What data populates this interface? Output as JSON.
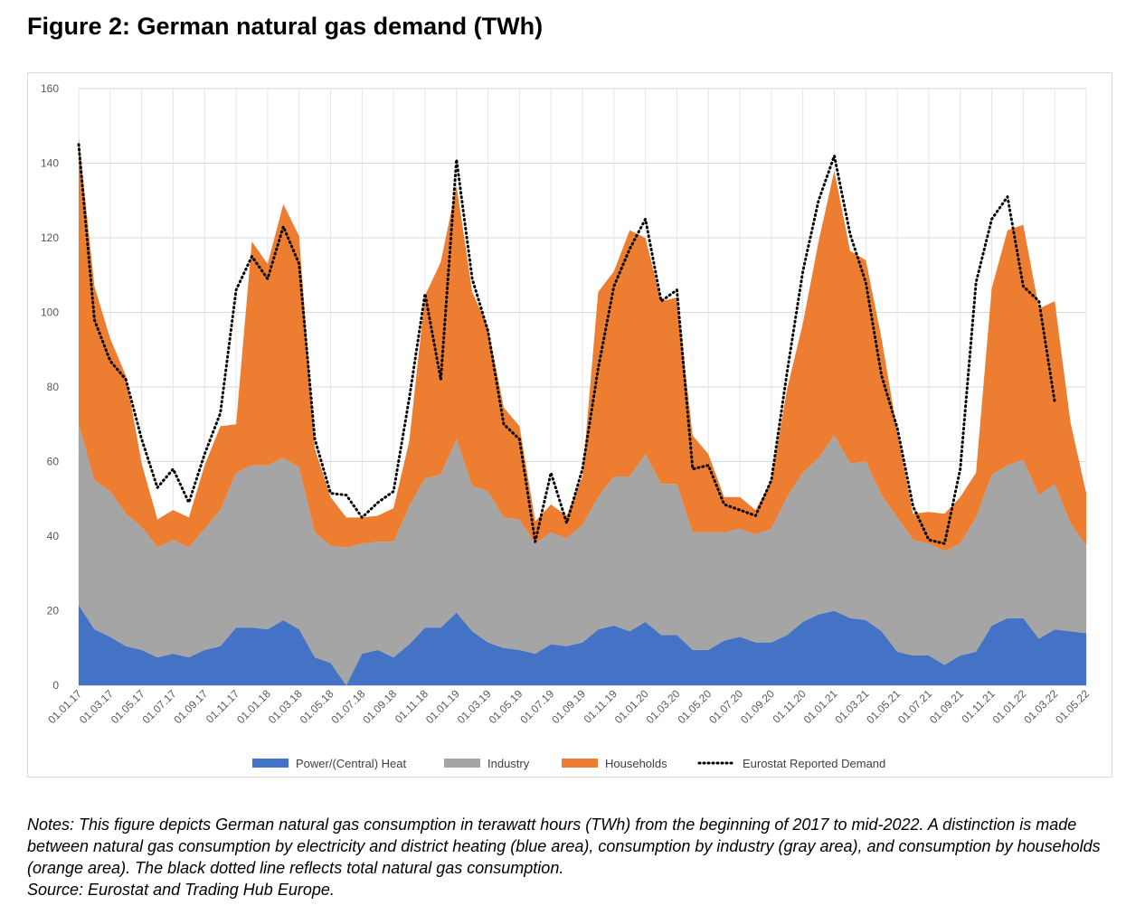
{
  "figure_title": "Figure 2: German natural gas demand (TWh)",
  "notes": "Notes: This figure depicts German natural gas consumption in terawatt hours (TWh) from the beginning of 2017 to mid-2022. A distinction is made between natural gas consumption by electricity and district heating (blue area), consumption by industry (gray area), and consumption by households (orange area). The black dotted line reflects total natural gas consumption.",
  "source": "Source: Eurostat and Trading Hub Europe.",
  "chart_data": {
    "type": "area",
    "stacked": true,
    "title": "",
    "xlabel": "",
    "ylabel": "",
    "ylim": [
      0,
      160
    ],
    "yticks": [
      0,
      20,
      40,
      60,
      80,
      100,
      120,
      140,
      160
    ],
    "grid": true,
    "legend_position": "bottom",
    "x_tick_labels": [
      "01.01.17",
      "01.03.17",
      "01.05.17",
      "01.07.17",
      "01.09.17",
      "01.11.17",
      "01.01.18",
      "01.03.18",
      "01.05.18",
      "01.07.18",
      "01.09.18",
      "01.11.18",
      "01.01.19",
      "01.03.19",
      "01.05.19",
      "01.07.19",
      "01.09.19",
      "01.11.19",
      "01.01.20",
      "01.03.20",
      "01.05.20",
      "01.07.20",
      "01.09.20",
      "01.11.20",
      "01.01.21",
      "01.03.21",
      "01.05.21",
      "01.07.21",
      "01.09.21",
      "01.11.21",
      "01.01.22",
      "01.03.22",
      "01.05.22"
    ],
    "series": [
      {
        "name": "Power/(Central) Heat",
        "kind": "area",
        "color": "#4472c4",
        "values": [
          21.5,
          15,
          13,
          10.5,
          9.5,
          7.5,
          8.5,
          7.5,
          9.5,
          10.5,
          15.5,
          15.5,
          15,
          17.5,
          15,
          7.5,
          6,
          0,
          8.5,
          9.5,
          7.5,
          11,
          15.5,
          15.5,
          19.5,
          14.5,
          11.5,
          10,
          9.5,
          8.5,
          11,
          10.5,
          11.5,
          15,
          16,
          14.5,
          17,
          13.5,
          13.5,
          9.5,
          9.5,
          12,
          13,
          11.5,
          11.5,
          13.5,
          17,
          19,
          20,
          18,
          17.5,
          14.5,
          9,
          8,
          8,
          5.5,
          8,
          9,
          16,
          18,
          18,
          12.5,
          15,
          14.5,
          14
        ]
      },
      {
        "name": "Industry",
        "kind": "area",
        "color": "#a5a5a5",
        "values": [
          48.5,
          40,
          39,
          35.5,
          33,
          29.5,
          30.5,
          29.5,
          32.5,
          36.5,
          41.5,
          43.5,
          44,
          43.5,
          43.5,
          33.5,
          31.5,
          37,
          29.5,
          29,
          31,
          37,
          40,
          41,
          46.5,
          39,
          40.5,
          35,
          35,
          29.5,
          30,
          29,
          31.5,
          35.5,
          40,
          41.5,
          45,
          40.5,
          40.5,
          31.5,
          31.5,
          29,
          29,
          29,
          30.5,
          37,
          40,
          42,
          47,
          41.5,
          42.5,
          36.5,
          36,
          31,
          30,
          30.5,
          30,
          36,
          40.5,
          41,
          42.5,
          38.5,
          39,
          29,
          23.5
        ]
      },
      {
        "name": "Households",
        "kind": "area",
        "color": "#ed7d31",
        "values": [
          77,
          52,
          41,
          37,
          17,
          7.5,
          8,
          8,
          17,
          22.5,
          13,
          60,
          54,
          68,
          62,
          22.5,
          13,
          8,
          7,
          7,
          9,
          17.5,
          49,
          57,
          68,
          52,
          44,
          29.5,
          25,
          6,
          7.5,
          6,
          13,
          55,
          55,
          66,
          58,
          49,
          50,
          26,
          21,
          9.5,
          8.5,
          6.5,
          13,
          29,
          40,
          58,
          71,
          57,
          54,
          42,
          23,
          7,
          8.5,
          10,
          12.5,
          12,
          50,
          63,
          63,
          50,
          49,
          27,
          14
        ]
      },
      {
        "name": "Eurostat Reported Demand",
        "kind": "line",
        "color": "#000000",
        "values": [
          145,
          98,
          87,
          82,
          66,
          53,
          58,
          49,
          62,
          73,
          106,
          115,
          109,
          123,
          113,
          66,
          51.5,
          51,
          45,
          49,
          52,
          77,
          105,
          82,
          141,
          109,
          95,
          70,
          66,
          38.5,
          57,
          43.5,
          58,
          85,
          107,
          117,
          125,
          103,
          106,
          58,
          59,
          48.5,
          47,
          45.5,
          55,
          84,
          111,
          130,
          142,
          121,
          108,
          83,
          69,
          48,
          39,
          38,
          58,
          108,
          125,
          131,
          107,
          103,
          76
        ]
      }
    ]
  }
}
